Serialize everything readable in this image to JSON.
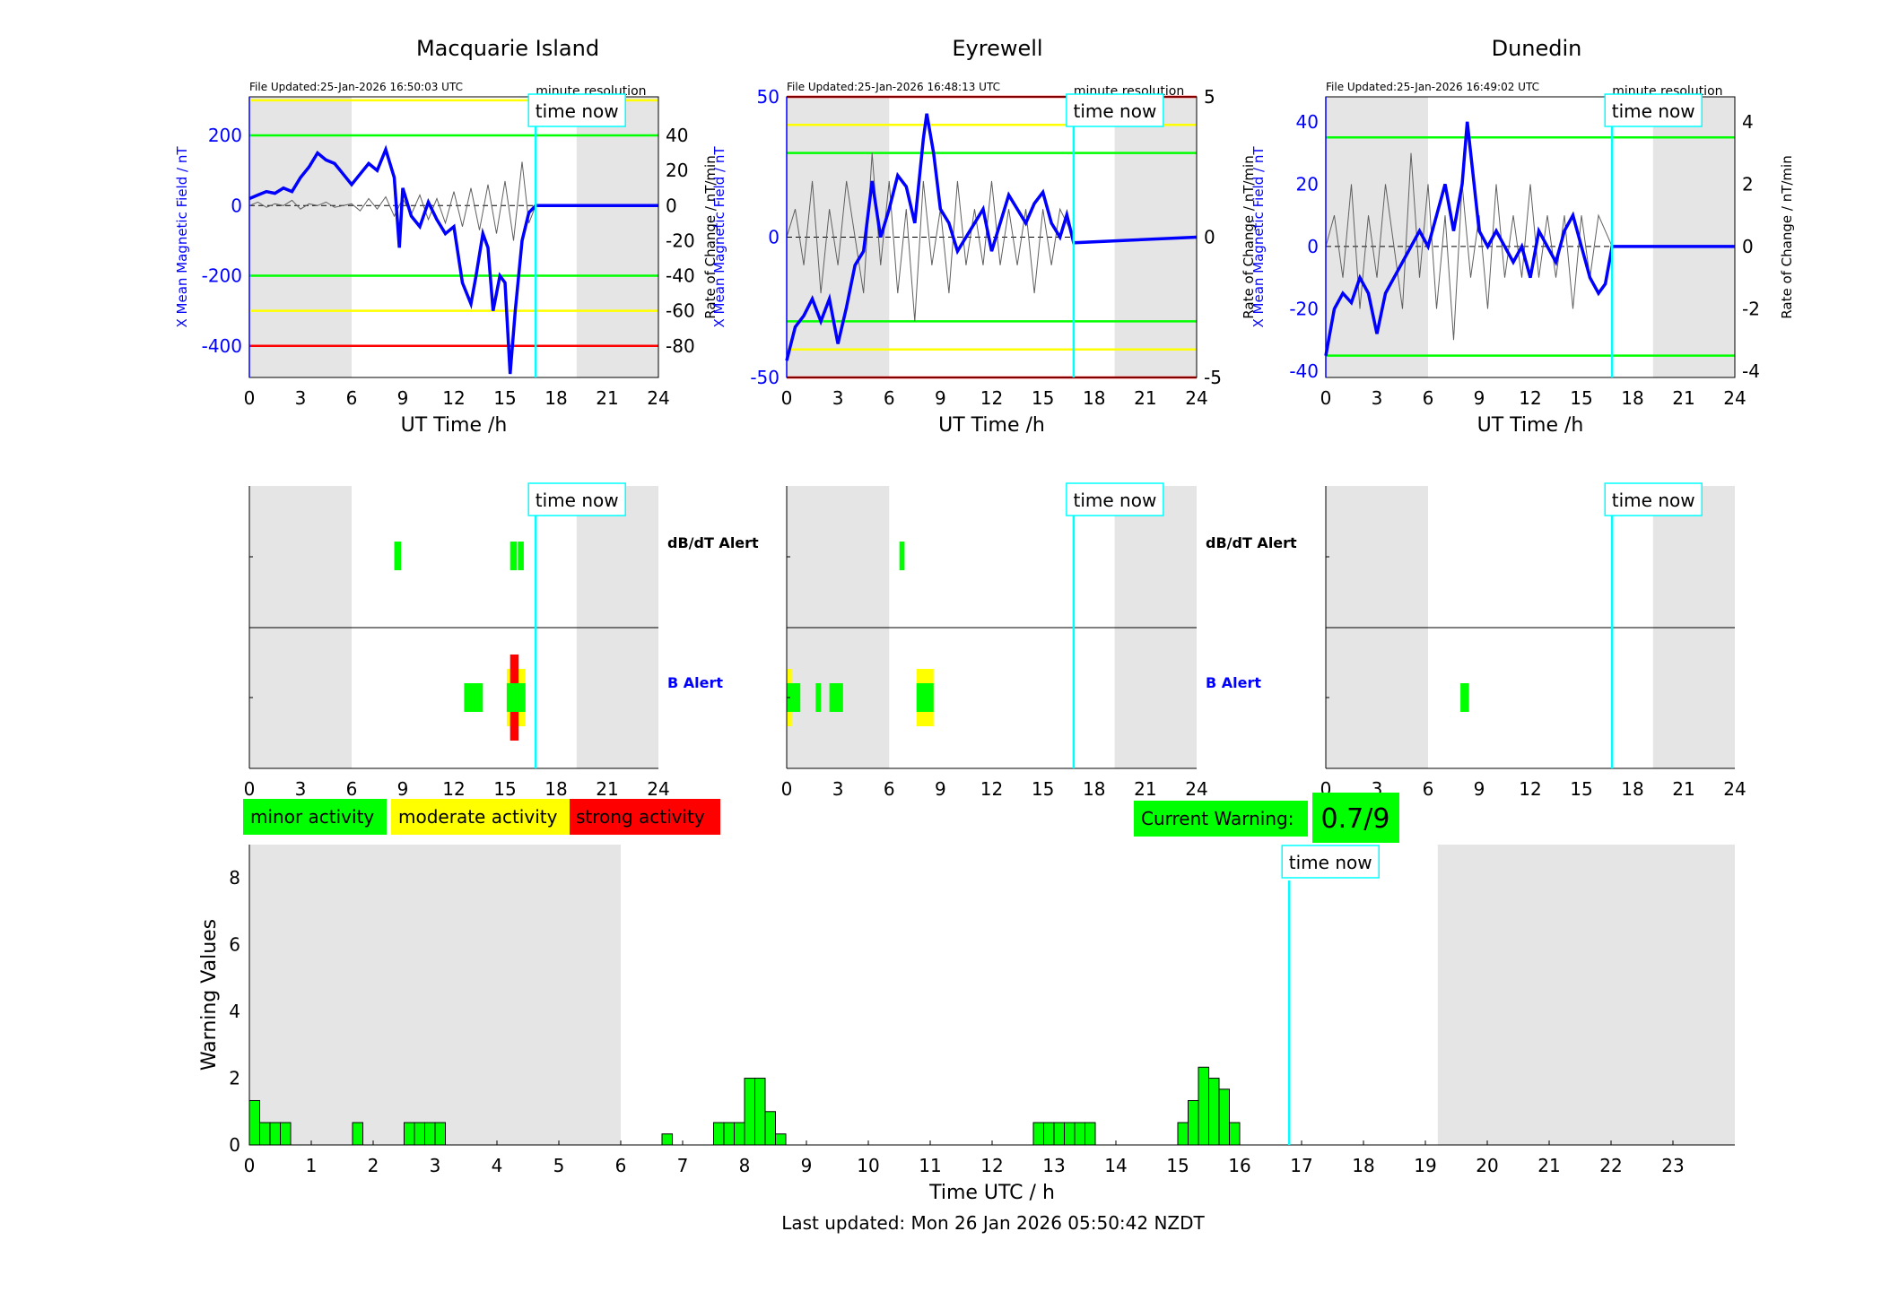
{
  "colors": {
    "field": "#0000ff",
    "rate": "#606060",
    "green": "#00ff00",
    "yellow": "#ffff00",
    "red": "#ff0000",
    "cyan": "#00ffff",
    "shade": "#e5e5e5",
    "dbdt_label": "#000000",
    "b_label": "#0000ff"
  },
  "labels": {
    "time_now": "time now",
    "minute_resolution": "minute resolution",
    "ut_xlabel": "UT Time /h",
    "left_ylabel": "X Mean Magnetic Field / nT",
    "right_ylabel": "Rate of Change / nT/min",
    "dbdt_alert": "dB/dT Alert",
    "b_alert": "B Alert"
  },
  "legend": {
    "minor": "minor activity",
    "moderate": "moderate activity",
    "strong": "strong activity"
  },
  "current_warning": {
    "label": "Current Warning:",
    "value": "0.7/9"
  },
  "footer": {
    "last_updated": "Last updated: Mon 26 Jan 2026 05:50:42 NZDT"
  },
  "chart_data": [
    {
      "type": "line",
      "title": "Macquarie Island",
      "file_updated": "File Updated:25-Jan-2026 16:50:03 UTC",
      "xlabel": "UT Time /h",
      "ylabel": "X Mean Magnetic Field / nT",
      "y2label": "Rate of Change / nT/min",
      "xlim": [
        0,
        24
      ],
      "xticks": [
        0,
        3,
        6,
        9,
        12,
        15,
        18,
        21,
        24
      ],
      "ylim": [
        -490,
        310
      ],
      "yticks": [
        -400,
        -200,
        0,
        200
      ],
      "y2lim": [
        -98,
        62
      ],
      "y2ticks": [
        -80,
        -60,
        -40,
        -20,
        0,
        20,
        40
      ],
      "shaded_hours": [
        [
          0,
          6
        ],
        [
          19.2,
          24
        ]
      ],
      "time_now": 16.8,
      "threshold_lines": [
        {
          "value": 300,
          "level": "yellow"
        },
        {
          "value": 200,
          "level": "green"
        },
        {
          "value": -200,
          "level": "green"
        },
        {
          "value": -300,
          "level": "yellow"
        },
        {
          "value": -400,
          "level": "red"
        }
      ],
      "field": [
        [
          0,
          20
        ],
        [
          0.5,
          30
        ],
        [
          1,
          40
        ],
        [
          1.5,
          35
        ],
        [
          2,
          50
        ],
        [
          2.5,
          40
        ],
        [
          3,
          80
        ],
        [
          3.5,
          110
        ],
        [
          4,
          150
        ],
        [
          4.5,
          130
        ],
        [
          5,
          120
        ],
        [
          5.5,
          90
        ],
        [
          6,
          60
        ],
        [
          6.5,
          90
        ],
        [
          7,
          120
        ],
        [
          7.5,
          100
        ],
        [
          8,
          160
        ],
        [
          8.5,
          80
        ],
        [
          8.8,
          -120
        ],
        [
          9,
          50
        ],
        [
          9.5,
          -30
        ],
        [
          10,
          -60
        ],
        [
          10.5,
          10
        ],
        [
          11,
          -40
        ],
        [
          11.5,
          -80
        ],
        [
          12,
          -60
        ],
        [
          12.5,
          -220
        ],
        [
          13,
          -280
        ],
        [
          13.3,
          -200
        ],
        [
          13.7,
          -80
        ],
        [
          14,
          -120
        ],
        [
          14.3,
          -300
        ],
        [
          14.7,
          -200
        ],
        [
          15,
          -220
        ],
        [
          15.3,
          -480
        ],
        [
          15.6,
          -300
        ],
        [
          16,
          -100
        ],
        [
          16.4,
          -20
        ],
        [
          16.8,
          0
        ],
        [
          24,
          0
        ]
      ],
      "rate": [
        [
          0,
          0
        ],
        [
          0.5,
          2
        ],
        [
          1,
          -1
        ],
        [
          1.5,
          1
        ],
        [
          2,
          0
        ],
        [
          2.5,
          3
        ],
        [
          3,
          -2
        ],
        [
          3.5,
          1
        ],
        [
          4,
          0
        ],
        [
          4.5,
          2
        ],
        [
          5,
          -1
        ],
        [
          5.5,
          0
        ],
        [
          6,
          1
        ],
        [
          6.5,
          -3
        ],
        [
          7,
          4
        ],
        [
          7.5,
          -2
        ],
        [
          8,
          5
        ],
        [
          8.5,
          -6
        ],
        [
          9,
          4
        ],
        [
          9.5,
          -5
        ],
        [
          10,
          6
        ],
        [
          10.5,
          -8
        ],
        [
          11,
          4
        ],
        [
          11.5,
          -10
        ],
        [
          12,
          8
        ],
        [
          12.5,
          -12
        ],
        [
          13,
          10
        ],
        [
          13.5,
          -14
        ],
        [
          14,
          12
        ],
        [
          14.5,
          -16
        ],
        [
          15,
          14
        ],
        [
          15.5,
          -20
        ],
        [
          16,
          25
        ],
        [
          16.4,
          -10
        ],
        [
          16.8,
          0
        ]
      ],
      "alerts": {
        "dbdt": [
          {
            "start": 8.5,
            "end": 8.9,
            "level": "green"
          },
          {
            "start": 15.3,
            "end": 15.7,
            "level": "green"
          },
          {
            "start": 15.75,
            "end": 16.1,
            "level": "green"
          }
        ],
        "b": [
          {
            "start": 12.6,
            "end": 13.7,
            "level": "green"
          },
          {
            "start": 15.1,
            "end": 16.2,
            "level": "yellow"
          },
          {
            "start": 15.3,
            "end": 15.8,
            "level": "red"
          },
          {
            "start": 15.1,
            "end": 16.2,
            "level": "green"
          }
        ]
      }
    },
    {
      "type": "line",
      "title": "Eyrewell",
      "file_updated": "File Updated:25-Jan-2026 16:48:13 UTC",
      "xlabel": "UT Time /h",
      "ylabel": "X Mean Magnetic Field / nT",
      "y2label": "Rate of Change / nT/min",
      "xlim": [
        0,
        24
      ],
      "xticks": [
        0,
        3,
        6,
        9,
        12,
        15,
        18,
        21,
        24
      ],
      "ylim": [
        -50,
        50
      ],
      "yticks": [
        -50,
        0,
        50
      ],
      "y2lim": [
        -5,
        5
      ],
      "y2ticks": [
        -5,
        0,
        5
      ],
      "shaded_hours": [
        [
          0,
          6
        ],
        [
          19.2,
          24
        ]
      ],
      "time_now": 16.8,
      "threshold_lines": [
        {
          "value": 50,
          "level": "red"
        },
        {
          "value": 40,
          "level": "yellow"
        },
        {
          "value": 30,
          "level": "green"
        },
        {
          "value": -30,
          "level": "green"
        },
        {
          "value": -40,
          "level": "yellow"
        },
        {
          "value": -50,
          "level": "red"
        }
      ],
      "field": [
        [
          0,
          -44
        ],
        [
          0.5,
          -32
        ],
        [
          1,
          -28
        ],
        [
          1.5,
          -22
        ],
        [
          2,
          -30
        ],
        [
          2.5,
          -22
        ],
        [
          3,
          -38
        ],
        [
          3.5,
          -25
        ],
        [
          4,
          -10
        ],
        [
          4.5,
          -5
        ],
        [
          5,
          20
        ],
        [
          5.5,
          0
        ],
        [
          6,
          10
        ],
        [
          6.5,
          22
        ],
        [
          7,
          18
        ],
        [
          7.5,
          5
        ],
        [
          8,
          35
        ],
        [
          8.2,
          44
        ],
        [
          8.6,
          30
        ],
        [
          9,
          10
        ],
        [
          9.5,
          5
        ],
        [
          10,
          -5
        ],
        [
          10.5,
          0
        ],
        [
          11,
          5
        ],
        [
          11.5,
          10
        ],
        [
          12,
          -5
        ],
        [
          12.5,
          5
        ],
        [
          13,
          15
        ],
        [
          13.5,
          10
        ],
        [
          14,
          5
        ],
        [
          14.5,
          12
        ],
        [
          15,
          16
        ],
        [
          15.5,
          5
        ],
        [
          16,
          0
        ],
        [
          16.4,
          8
        ],
        [
          16.8,
          -2
        ],
        [
          24,
          0
        ]
      ],
      "rate": [
        [
          0,
          0
        ],
        [
          0.5,
          1
        ],
        [
          1,
          -1
        ],
        [
          1.5,
          2
        ],
        [
          2,
          -2
        ],
        [
          2.5,
          1
        ],
        [
          3,
          -1
        ],
        [
          3.5,
          2
        ],
        [
          4,
          0
        ],
        [
          4.5,
          -2
        ],
        [
          5,
          3
        ],
        [
          5.5,
          -1
        ],
        [
          6,
          2
        ],
        [
          6.5,
          -2
        ],
        [
          7,
          1
        ],
        [
          7.5,
          -3
        ],
        [
          8,
          2
        ],
        [
          8.5,
          -1
        ],
        [
          9,
          1
        ],
        [
          9.5,
          -2
        ],
        [
          10,
          2
        ],
        [
          10.5,
          -1
        ],
        [
          11,
          1
        ],
        [
          11.5,
          -1
        ],
        [
          12,
          2
        ],
        [
          12.5,
          -1
        ],
        [
          13,
          1
        ],
        [
          13.5,
          -1
        ],
        [
          14,
          1
        ],
        [
          14.5,
          -2
        ],
        [
          15,
          1
        ],
        [
          15.5,
          -1
        ],
        [
          16,
          1
        ],
        [
          16.8,
          0
        ]
      ],
      "alerts": {
        "dbdt": [
          {
            "start": 6.6,
            "end": 6.9,
            "level": "green"
          }
        ],
        "b": [
          {
            "start": 0,
            "end": 0.3,
            "level": "yellow"
          },
          {
            "start": 0,
            "end": 0.8,
            "level": "green"
          },
          {
            "start": 1.7,
            "end": 2.0,
            "level": "green"
          },
          {
            "start": 2.5,
            "end": 3.3,
            "level": "green"
          },
          {
            "start": 7.6,
            "end": 8.6,
            "level": "yellow"
          },
          {
            "start": 7.6,
            "end": 8.6,
            "level": "green"
          }
        ]
      }
    },
    {
      "type": "line",
      "title": "Dunedin",
      "file_updated": "File Updated:25-Jan-2026 16:49:02 UTC",
      "xlabel": "UT Time /h",
      "ylabel": "X Mean Magnetic Field / nT",
      "y2label": "Rate of Change / nT/min",
      "xlim": [
        0,
        24
      ],
      "xticks": [
        0,
        3,
        6,
        9,
        12,
        15,
        18,
        21,
        24
      ],
      "ylim": [
        -42,
        48
      ],
      "yticks": [
        -40,
        -20,
        0,
        20,
        40
      ],
      "y2lim": [
        -4.2,
        4.8
      ],
      "y2ticks": [
        -4,
        -2,
        0,
        2,
        4
      ],
      "shaded_hours": [
        [
          0,
          6
        ],
        [
          19.2,
          24
        ]
      ],
      "time_now": 16.8,
      "threshold_lines": [
        {
          "value": 35,
          "level": "green"
        },
        {
          "value": -35,
          "level": "green"
        }
      ],
      "field": [
        [
          0,
          -35
        ],
        [
          0.5,
          -20
        ],
        [
          1,
          -15
        ],
        [
          1.5,
          -18
        ],
        [
          2,
          -10
        ],
        [
          2.5,
          -15
        ],
        [
          3,
          -28
        ],
        [
          3.5,
          -15
        ],
        [
          4,
          -10
        ],
        [
          4.5,
          -5
        ],
        [
          5,
          0
        ],
        [
          5.5,
          5
        ],
        [
          6,
          0
        ],
        [
          6.5,
          10
        ],
        [
          7,
          20
        ],
        [
          7.5,
          5
        ],
        [
          8,
          20
        ],
        [
          8.3,
          40
        ],
        [
          8.6,
          25
        ],
        [
          9,
          5
        ],
        [
          9.5,
          0
        ],
        [
          10,
          5
        ],
        [
          10.5,
          0
        ],
        [
          11,
          -5
        ],
        [
          11.5,
          0
        ],
        [
          12,
          -10
        ],
        [
          12.5,
          5
        ],
        [
          13,
          0
        ],
        [
          13.5,
          -5
        ],
        [
          14,
          5
        ],
        [
          14.5,
          10
        ],
        [
          15,
          0
        ],
        [
          15.5,
          -10
        ],
        [
          16,
          -15
        ],
        [
          16.4,
          -12
        ],
        [
          16.8,
          0
        ],
        [
          24,
          0
        ]
      ],
      "rate": [
        [
          0,
          0
        ],
        [
          0.5,
          1
        ],
        [
          1,
          -1
        ],
        [
          1.5,
          2
        ],
        [
          2,
          -2
        ],
        [
          2.5,
          1
        ],
        [
          3,
          -1
        ],
        [
          3.5,
          2
        ],
        [
          4,
          0
        ],
        [
          4.5,
          -2
        ],
        [
          5,
          3
        ],
        [
          5.5,
          -1
        ],
        [
          6,
          2
        ],
        [
          6.5,
          -2
        ],
        [
          7,
          1
        ],
        [
          7.5,
          -3
        ],
        [
          8,
          2
        ],
        [
          8.5,
          -1
        ],
        [
          9,
          1
        ],
        [
          9.5,
          -2
        ],
        [
          10,
          2
        ],
        [
          10.5,
          -1
        ],
        [
          11,
          1
        ],
        [
          11.5,
          -1
        ],
        [
          12,
          2
        ],
        [
          12.5,
          -1
        ],
        [
          13,
          1
        ],
        [
          13.5,
          -1
        ],
        [
          14,
          1
        ],
        [
          14.5,
          -2
        ],
        [
          15,
          1
        ],
        [
          15.5,
          -1
        ],
        [
          16,
          1
        ],
        [
          16.8,
          0
        ]
      ],
      "alerts": {
        "dbdt": [],
        "b": [
          {
            "start": 7.9,
            "end": 8.4,
            "level": "green"
          }
        ]
      }
    },
    {
      "type": "bar",
      "xlabel": "Time UTC / h",
      "ylabel": "Warning Values",
      "xlim": [
        0,
        24
      ],
      "xticks": [
        0,
        1,
        2,
        3,
        4,
        5,
        6,
        7,
        8,
        9,
        10,
        11,
        12,
        13,
        14,
        15,
        16,
        17,
        18,
        19,
        20,
        21,
        22,
        23
      ],
      "ylim": [
        0,
        9
      ],
      "yticks": [
        0,
        2,
        4,
        6,
        8
      ],
      "shaded_hours": [
        [
          0,
          6
        ],
        [
          19.2,
          24
        ]
      ],
      "time_now": 16.8,
      "bar_width_hours": 0.1667,
      "bars": [
        [
          0.0,
          1.33
        ],
        [
          0.1667,
          0.67
        ],
        [
          0.3333,
          0.67
        ],
        [
          0.5,
          0.67
        ],
        [
          1.6667,
          0.67
        ],
        [
          2.5,
          0.67
        ],
        [
          2.6667,
          0.67
        ],
        [
          2.8333,
          0.67
        ],
        [
          3.0,
          0.67
        ],
        [
          6.6667,
          0.33
        ],
        [
          7.5,
          0.67
        ],
        [
          7.6667,
          0.67
        ],
        [
          7.8333,
          0.67
        ],
        [
          8.0,
          2.0
        ],
        [
          8.1667,
          2.0
        ],
        [
          8.3333,
          1.0
        ],
        [
          8.5,
          0.33
        ],
        [
          12.6667,
          0.67
        ],
        [
          12.8333,
          0.67
        ],
        [
          13.0,
          0.67
        ],
        [
          13.1667,
          0.67
        ],
        [
          13.3333,
          0.67
        ],
        [
          13.5,
          0.67
        ],
        [
          15.0,
          0.67
        ],
        [
          15.1667,
          1.33
        ],
        [
          15.3333,
          2.33
        ],
        [
          15.5,
          2.0
        ],
        [
          15.6667,
          1.67
        ],
        [
          15.8333,
          0.67
        ]
      ]
    }
  ]
}
